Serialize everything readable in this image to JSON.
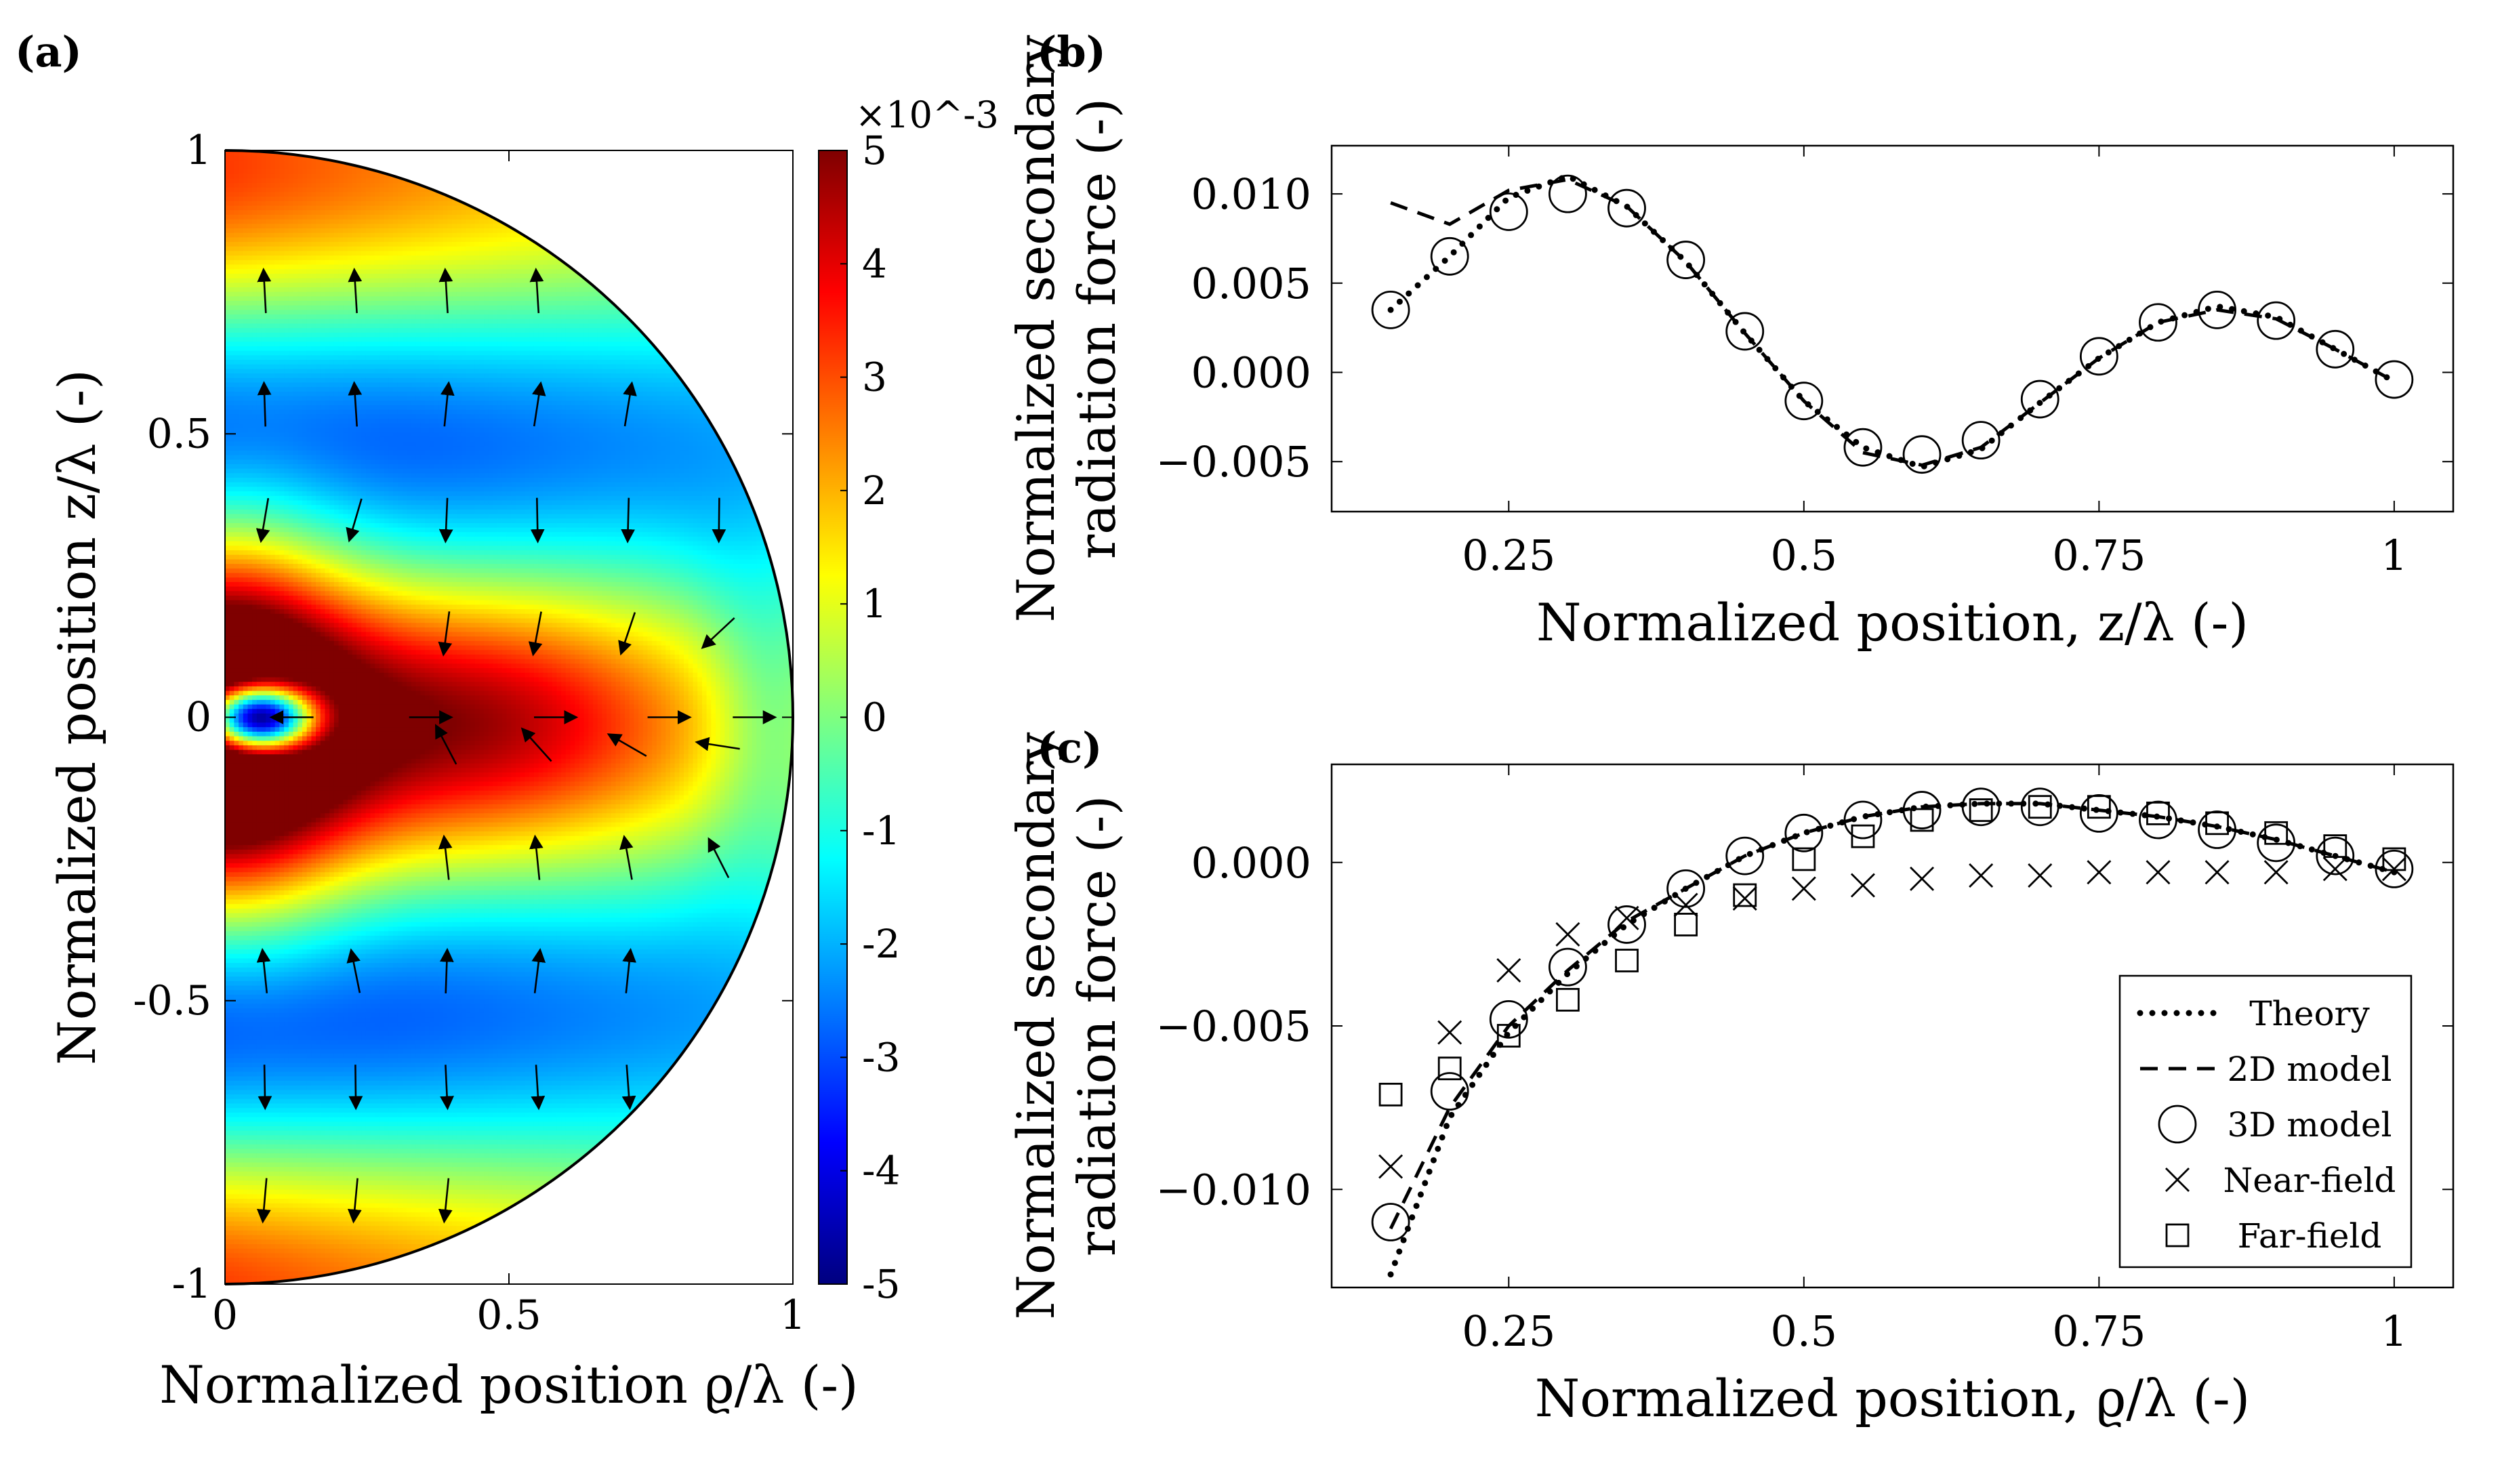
{
  "figure": {
    "panel_labels": [
      "(a)",
      "(b)",
      "(c)"
    ]
  },
  "chart_data": [
    {
      "type": "heatmap",
      "panel": "(a)",
      "xlabel": "Normalized position ϱ/λ (-)",
      "ylabel": "Normalized position z/λ (-)",
      "xlim": [
        0,
        1
      ],
      "ylim": [
        -1,
        1
      ],
      "xticks": [
        0,
        0.5,
        1
      ],
      "xtick_labels": [
        "0",
        "0.5",
        "1"
      ],
      "yticks": [
        -1,
        -0.5,
        0,
        0.5,
        1
      ],
      "ytick_labels": [
        "-1",
        "-0.5",
        "0",
        "0.5",
        "1"
      ],
      "domain": "half-disk ϱ² + z² ≤ 1",
      "colorbar": {
        "min": -5,
        "max": 5,
        "ticks": [
          -5,
          -4,
          -3,
          -2,
          -1,
          0,
          1,
          2,
          3,
          4,
          5
        ],
        "tick_labels": [
          "-5",
          "-4",
          "-3",
          "-2",
          "-1",
          "0",
          "1",
          "2",
          "3",
          "4",
          "5"
        ],
        "multiplier": "×10^-3",
        "colors": [
          "#00007f",
          "#0000ff",
          "#007fff",
          "#00ffff",
          "#7fff7f",
          "#ffff00",
          "#ff7f00",
          "#ff0000",
          "#7f0000"
        ]
      },
      "colormap": "jet",
      "arrows": "force vector field quiver"
    },
    {
      "type": "line",
      "panel": "(b)",
      "xlabel": "Normalized position, z/λ (-)",
      "ylabel": [
        "Normalized secondary",
        "radiation force (-)"
      ],
      "xlim": [
        0.1,
        1.05
      ],
      "ylim": [
        -0.0078,
        0.0127
      ],
      "xticks": [
        0.25,
        0.5,
        0.75,
        1
      ],
      "xtick_labels": [
        "0.25",
        "0.5",
        "0.75",
        "1"
      ],
      "yticks": [
        -0.005,
        0.0,
        0.005,
        0.01
      ],
      "ytick_labels": [
        "−0.005",
        "0.000",
        "0.005",
        "0.010"
      ],
      "series": [
        {
          "name": "Theory",
          "style": "dotted",
          "x": [
            0.15,
            0.2,
            0.25,
            0.3,
            0.35,
            0.4,
            0.45,
            0.5,
            0.55,
            0.6,
            0.65,
            0.7,
            0.75,
            0.8,
            0.85,
            0.9,
            0.95,
            1.0
          ],
          "y": [
            0.0035,
            0.0065,
            0.0098,
            0.011,
            0.0093,
            0.0062,
            0.0022,
            -0.0016,
            -0.0042,
            -0.0053,
            -0.0043,
            -0.0017,
            0.0008,
            0.0028,
            0.0037,
            0.0031,
            0.0013,
            -0.0005
          ]
        },
        {
          "name": "2D model",
          "style": "dashed",
          "x": [
            0.15,
            0.2,
            0.25,
            0.3,
            0.35,
            0.4,
            0.45,
            0.5,
            0.55,
            0.6,
            0.65,
            0.7,
            0.75,
            0.8,
            0.85,
            0.9,
            0.95,
            1.0
          ],
          "y": [
            0.0095,
            0.0083,
            0.0102,
            0.0108,
            0.0093,
            0.0062,
            0.0022,
            -0.0016,
            -0.0045,
            -0.0052,
            -0.0042,
            -0.0017,
            0.0008,
            0.0028,
            0.0035,
            0.003,
            0.0013,
            -0.0005
          ]
        },
        {
          "name": "3D model",
          "style": "circle",
          "x": [
            0.15,
            0.2,
            0.25,
            0.3,
            0.35,
            0.4,
            0.45,
            0.5,
            0.55,
            0.6,
            0.65,
            0.7,
            0.75,
            0.8,
            0.85,
            0.9,
            0.95,
            1.0
          ],
          "y": [
            0.0035,
            0.0065,
            0.009,
            0.01,
            0.0092,
            0.0063,
            0.0023,
            -0.0016,
            -0.0042,
            -0.0046,
            -0.0038,
            -0.0015,
            0.0009,
            0.0028,
            0.0035,
            0.0029,
            0.0013,
            -0.0004
          ]
        }
      ]
    },
    {
      "type": "line",
      "panel": "(c)",
      "xlabel": "Normalized position, ϱ/λ (-)",
      "ylabel": [
        "Normalized secondary",
        "radiation force (-)"
      ],
      "xlim": [
        0.1,
        1.05
      ],
      "ylim": [
        -0.013,
        0.003
      ],
      "xticks": [
        0.25,
        0.5,
        0.75,
        1
      ],
      "xtick_labels": [
        "0.25",
        "0.5",
        "0.75",
        "1"
      ],
      "yticks": [
        -0.01,
        -0.005,
        0.0
      ],
      "ytick_labels": [
        "−0.010",
        "−0.005",
        "0.000"
      ],
      "legend_position": "bottom-right",
      "series": [
        {
          "name": "Theory",
          "style": "dotted",
          "x": [
            0.15,
            0.2,
            0.25,
            0.3,
            0.35,
            0.4,
            0.45,
            0.5,
            0.55,
            0.6,
            0.65,
            0.7,
            0.75,
            0.8,
            0.85,
            0.9,
            0.95,
            1.0
          ],
          "y": [
            -0.0126,
            -0.0078,
            -0.0052,
            -0.0034,
            -0.0019,
            -0.0008,
            0.0002,
            0.0009,
            0.0014,
            0.0017,
            0.0018,
            0.0018,
            0.0016,
            0.0014,
            0.0011,
            0.0007,
            0.0002,
            -0.0003
          ]
        },
        {
          "name": "2D model",
          "style": "dashed",
          "x": [
            0.15,
            0.2,
            0.25,
            0.3,
            0.35,
            0.4,
            0.45,
            0.5,
            0.55,
            0.6,
            0.65,
            0.7,
            0.75,
            0.8,
            0.85,
            0.9,
            0.95,
            1.0
          ],
          "y": [
            -0.0112,
            -0.0075,
            -0.005,
            -0.0033,
            -0.0018,
            -0.0008,
            0.0002,
            0.0009,
            0.0014,
            0.0017,
            0.0018,
            0.0018,
            0.0016,
            0.0014,
            0.0011,
            0.0007,
            0.0002,
            -0.0003
          ]
        },
        {
          "name": "3D model",
          "style": "circle",
          "x": [
            0.15,
            0.2,
            0.25,
            0.3,
            0.35,
            0.4,
            0.45,
            0.5,
            0.55,
            0.6,
            0.65,
            0.7,
            0.75,
            0.8,
            0.85,
            0.9,
            0.95,
            1.0
          ],
          "y": [
            -0.011,
            -0.007,
            -0.0048,
            -0.0032,
            -0.0019,
            -0.0008,
            0.0002,
            0.0009,
            0.0013,
            0.0016,
            0.0017,
            0.0017,
            0.0015,
            0.0013,
            0.001,
            0.0006,
            0.0002,
            -0.0002
          ]
        },
        {
          "name": "Near-field",
          "style": "cross",
          "x": [
            0.15,
            0.2,
            0.25,
            0.3,
            0.35,
            0.4,
            0.45,
            0.5,
            0.55,
            0.6,
            0.65,
            0.7,
            0.75,
            0.8,
            0.85,
            0.9,
            0.95,
            1.0
          ],
          "y": [
            -0.0093,
            -0.0052,
            -0.0033,
            -0.0022,
            -0.0017,
            -0.0013,
            -0.0011,
            -0.0008,
            -0.0007,
            -0.0005,
            -0.0004,
            -0.0004,
            -0.0003,
            -0.0003,
            -0.0003,
            -0.0003,
            -0.0002,
            -0.0002
          ]
        },
        {
          "name": "Far-field",
          "style": "square",
          "x": [
            0.15,
            0.2,
            0.25,
            0.3,
            0.35,
            0.4,
            0.45,
            0.5,
            0.55,
            0.6,
            0.65,
            0.7,
            0.75,
            0.8,
            0.85,
            0.9,
            0.95,
            1.0
          ],
          "y": [
            -0.0071,
            -0.0063,
            -0.0053,
            -0.0042,
            -0.003,
            -0.0019,
            -0.001,
            0.0001,
            0.0008,
            0.0013,
            0.0016,
            0.0017,
            0.0017,
            0.0015,
            0.0012,
            0.0009,
            0.0005,
            0.0001
          ]
        }
      ]
    }
  ]
}
